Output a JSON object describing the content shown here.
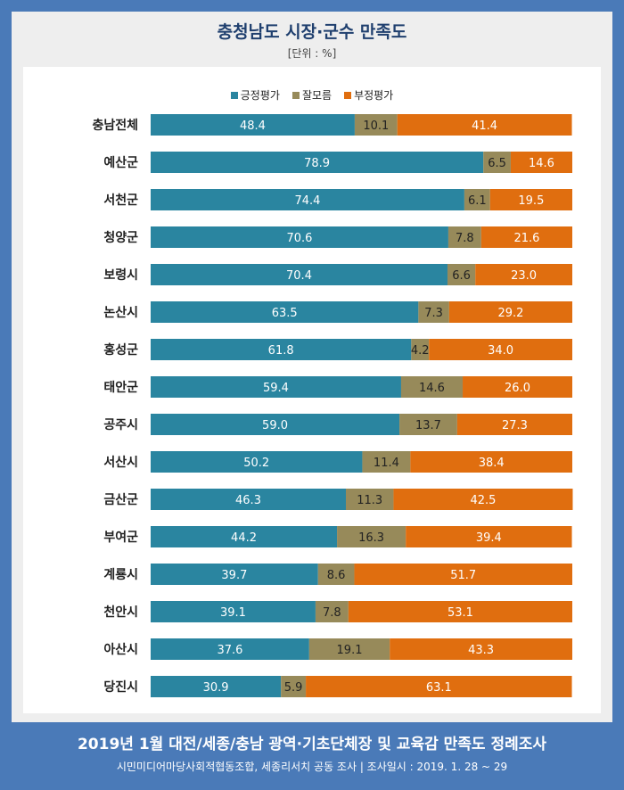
{
  "title": "충청남도 시장·군수 만족도",
  "unit": "[단위 : %]",
  "footer": {
    "title": "2019년 1월 대전/세종/충남 광역·기초단체장 및 교육감 만족도 정례조사",
    "subtitle": "시민미디어마당사회적협동조합, 세종리서치 공동 조사  |  조사일시 : 2019. 1. 28 ~ 29"
  },
  "colors": {
    "positive": "#2a85a0",
    "unknown": "#978a5a",
    "negative": "#e06e0f",
    "background": "#4a7ab8"
  },
  "chart_data": {
    "type": "bar",
    "orientation": "horizontal",
    "stacked": true,
    "categories": [
      "충남전체",
      "예산군",
      "서천군",
      "청양군",
      "보령시",
      "논산시",
      "홍성군",
      "태안군",
      "공주시",
      "서산시",
      "금산군",
      "부여군",
      "계룡시",
      "천안시",
      "아산시",
      "당진시"
    ],
    "series": [
      {
        "name": "긍정평가",
        "values": [
          48.4,
          78.9,
          74.4,
          70.6,
          70.4,
          63.5,
          61.8,
          59.4,
          59.0,
          50.2,
          46.3,
          44.2,
          39.7,
          39.1,
          37.6,
          30.9
        ]
      },
      {
        "name": "잘모름",
        "values": [
          10.1,
          6.5,
          6.1,
          7.8,
          6.6,
          7.3,
          4.2,
          14.6,
          13.7,
          11.4,
          11.3,
          16.3,
          8.6,
          7.8,
          19.1,
          5.9
        ]
      },
      {
        "name": "부정평가",
        "values": [
          41.4,
          14.6,
          19.5,
          21.6,
          23.0,
          29.2,
          34.0,
          26.0,
          27.3,
          38.4,
          42.5,
          39.4,
          51.7,
          53.1,
          43.3,
          63.1
        ]
      }
    ],
    "value_labels": [
      [
        "48.4",
        "10.1",
        "41.4"
      ],
      [
        "78.9",
        "6.5",
        "14.6"
      ],
      [
        "74.4",
        "6.1",
        "19.5"
      ],
      [
        "70.6",
        "7.8",
        "21.6"
      ],
      [
        "70.4",
        "6.6",
        "23.0"
      ],
      [
        "63.5",
        "7.3",
        "29.2"
      ],
      [
        "61.8",
        "4.2",
        "34.0"
      ],
      [
        "59.4",
        "14.6",
        "26.0"
      ],
      [
        "59.0",
        "13.7",
        "27.3"
      ],
      [
        "50.2",
        "11.4",
        "38.4"
      ],
      [
        "46.3",
        "11.3",
        "42.5"
      ],
      [
        "44.2",
        "16.3",
        "39.4"
      ],
      [
        "39.7",
        "8.6",
        "51.7"
      ],
      [
        "39.1",
        "7.8",
        "53.1"
      ],
      [
        "37.6",
        "19.1",
        "43.3"
      ],
      [
        "30.9",
        "5.9",
        "63.1"
      ]
    ],
    "xlim": [
      0,
      100
    ],
    "legend_position": "top-center",
    "grid": false
  }
}
